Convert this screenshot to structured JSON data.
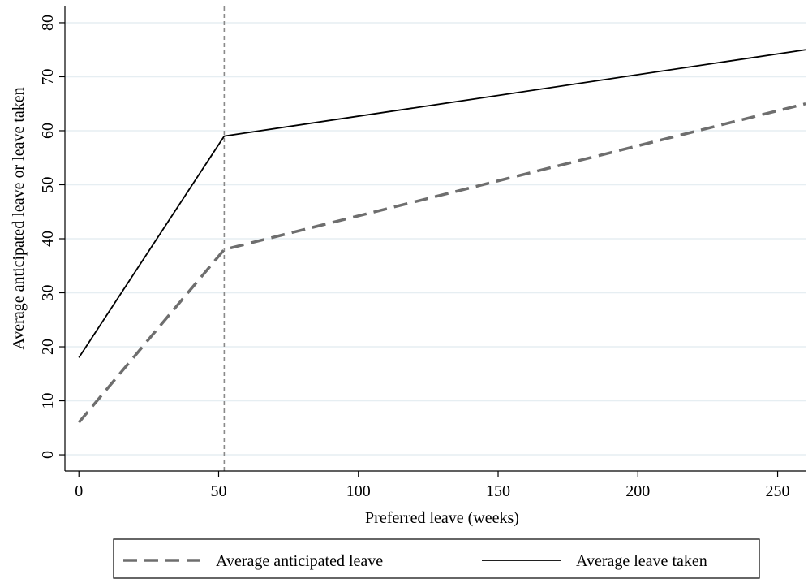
{
  "chart_data": {
    "type": "line",
    "title": "",
    "xlabel": "Preferred leave (weeks)",
    "ylabel": "Average anticipated leave or leave taken",
    "xlim": [
      -5,
      260
    ],
    "ylim": [
      -3,
      83
    ],
    "x_ticks": [
      0,
      50,
      100,
      150,
      200,
      250
    ],
    "y_ticks": [
      0,
      10,
      20,
      30,
      40,
      50,
      60,
      70,
      80
    ],
    "grid": true,
    "reference_line": {
      "axis": "x",
      "value": 52,
      "style": "dashed"
    },
    "series": [
      {
        "name": "Average anticipated leave",
        "style": "dashed",
        "color": "#6e6e6e",
        "x": [
          0,
          52,
          260
        ],
        "y": [
          6,
          38,
          65
        ]
      },
      {
        "name": "Average leave taken",
        "style": "solid",
        "color": "#000000",
        "x": [
          0,
          52,
          260
        ],
        "y": [
          18,
          59,
          75
        ]
      }
    ],
    "legend": {
      "position": "bottom",
      "columns": 2
    }
  },
  "colors": {
    "grid": "#e6eef2",
    "reference_line": "#8a8a8a"
  }
}
